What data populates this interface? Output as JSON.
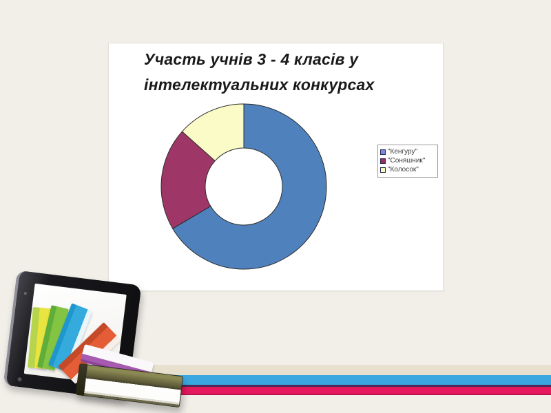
{
  "slide": {
    "background_color": "#F2EFE9",
    "panel_color": "#FFFFFF"
  },
  "panel": {
    "title_line1": "Участь учнів 3 - 4 класів у",
    "title_line2": "інтелектуальних конкурсах"
  },
  "chart_data": {
    "type": "pie",
    "subtype": "doughnut",
    "title": "Участь учнів 3 - 4 класів у інтелектуальних конкурсах",
    "categories": [
      "\"Кенгуру\"",
      "\"Соняшник\"",
      "\"Колосок\""
    ],
    "values": [
      66.5,
      20.1,
      13.4
    ],
    "unit": "percent-estimated-from-arc-angles",
    "colors": [
      "#4F81BD",
      "#9E3768",
      "#FBFBC8"
    ],
    "segment_outline_color": "#2b2b2b",
    "start_angle_deg": 0,
    "direction": "clockwise",
    "inner_radius_ratio": 0.47,
    "legend_position": "right",
    "legend_border": true
  },
  "legend": {
    "items": [
      {
        "label": "\"Кенгуру\"",
        "color": "#7E88DD"
      },
      {
        "label": "\"Соняшник\"",
        "color": "#9B2D62"
      },
      {
        "label": "\"Колосок\"",
        "color": "#FAFAC0"
      }
    ]
  },
  "decor": {
    "stripes": {
      "tan": "#E7E0CE",
      "blue": "#3BA7E0",
      "separator": "#4E2A55",
      "pink": "#E6195E"
    },
    "illustration": "tablet-with-books"
  }
}
